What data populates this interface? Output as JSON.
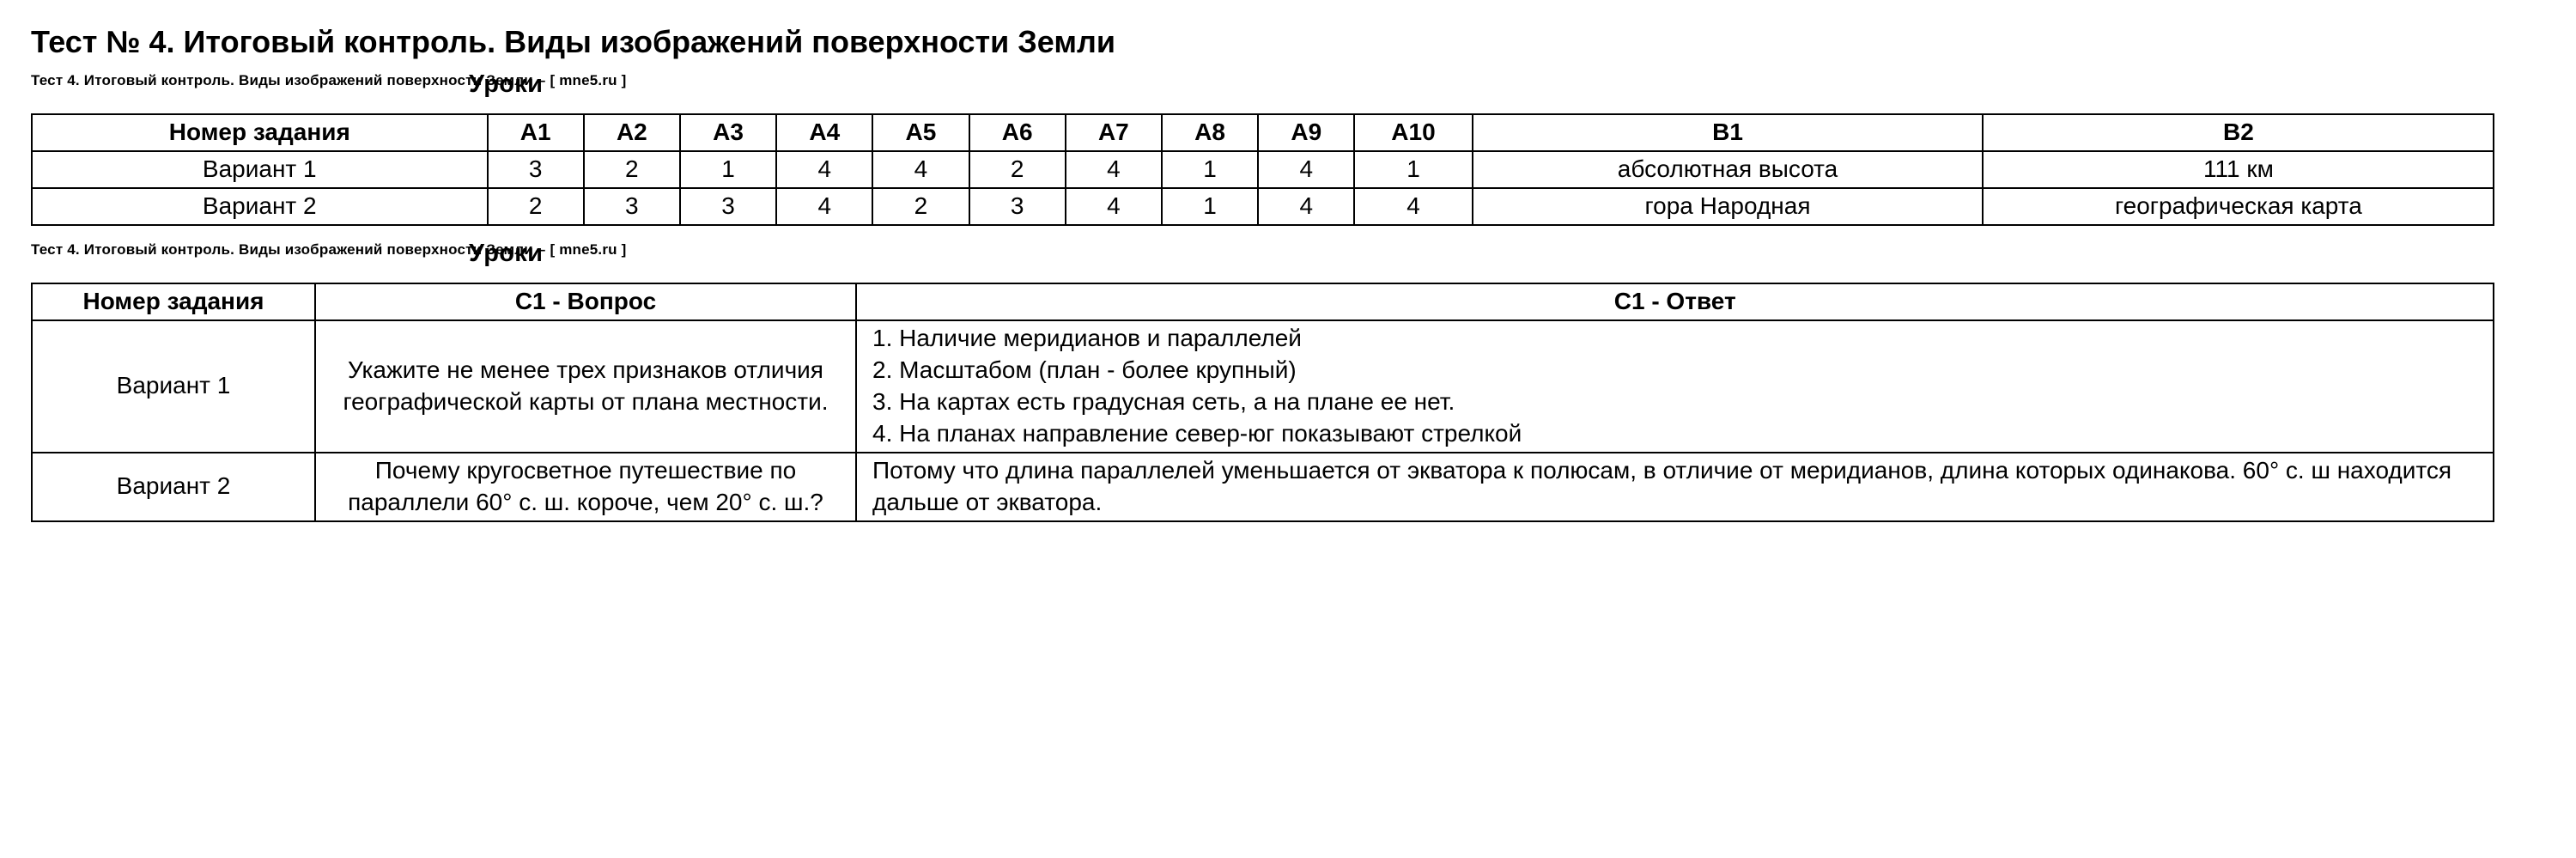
{
  "title": "Тест № 4. Итоговый контроль. Виды изображений поверхности Земли",
  "watermark": {
    "line": "Тест 4. Итоговый контроль. Виды изображений поверхности Земли  –  [ mne5.ru ]",
    "overlay": "Уроки"
  },
  "table1": {
    "columns": [
      "Номер задания",
      "А1",
      "А2",
      "А3",
      "А4",
      "А5",
      "А6",
      "А7",
      "А8",
      "А9",
      "А10",
      "В1",
      "В2"
    ],
    "rows": [
      {
        "label": "Вариант 1",
        "cells": [
          "3",
          "2",
          "1",
          "4",
          "4",
          "2",
          "4",
          "1",
          "4",
          "1",
          "абсолютная высота",
          "111 км"
        ]
      },
      {
        "label": "Вариант 2",
        "cells": [
          "2",
          "3",
          "3",
          "4",
          "2",
          "3",
          "4",
          "1",
          "4",
          "4",
          "гора Народная",
          "географическая карта"
        ]
      }
    ]
  },
  "table2": {
    "columns": [
      "Номер задания",
      "С1 - Вопрос",
      "С1 - Ответ"
    ],
    "rows": [
      {
        "label": "Вариант 1",
        "question": "Укажите не менее трех признаков отличия географической карты от плана местности.",
        "answer": "1. Наличие меридианов и параллелей\n2. Масштабом (план - более крупный)\n3. На картах есть градусная сеть, а на плане ее нет.\n4. На планах направление север-юг показывают стрелкой"
      },
      {
        "label": "Вариант 2",
        "question": "Почему кругосветное путешествие по параллели 60° с. ш. короче, чем 20° с. ш.?",
        "answer": "Потому что длина параллелей уменьшается от экватора к полюсам, в отличие от меридианов, длина которых одинакова. 60° с. ш находится дальше от экватора."
      }
    ]
  }
}
